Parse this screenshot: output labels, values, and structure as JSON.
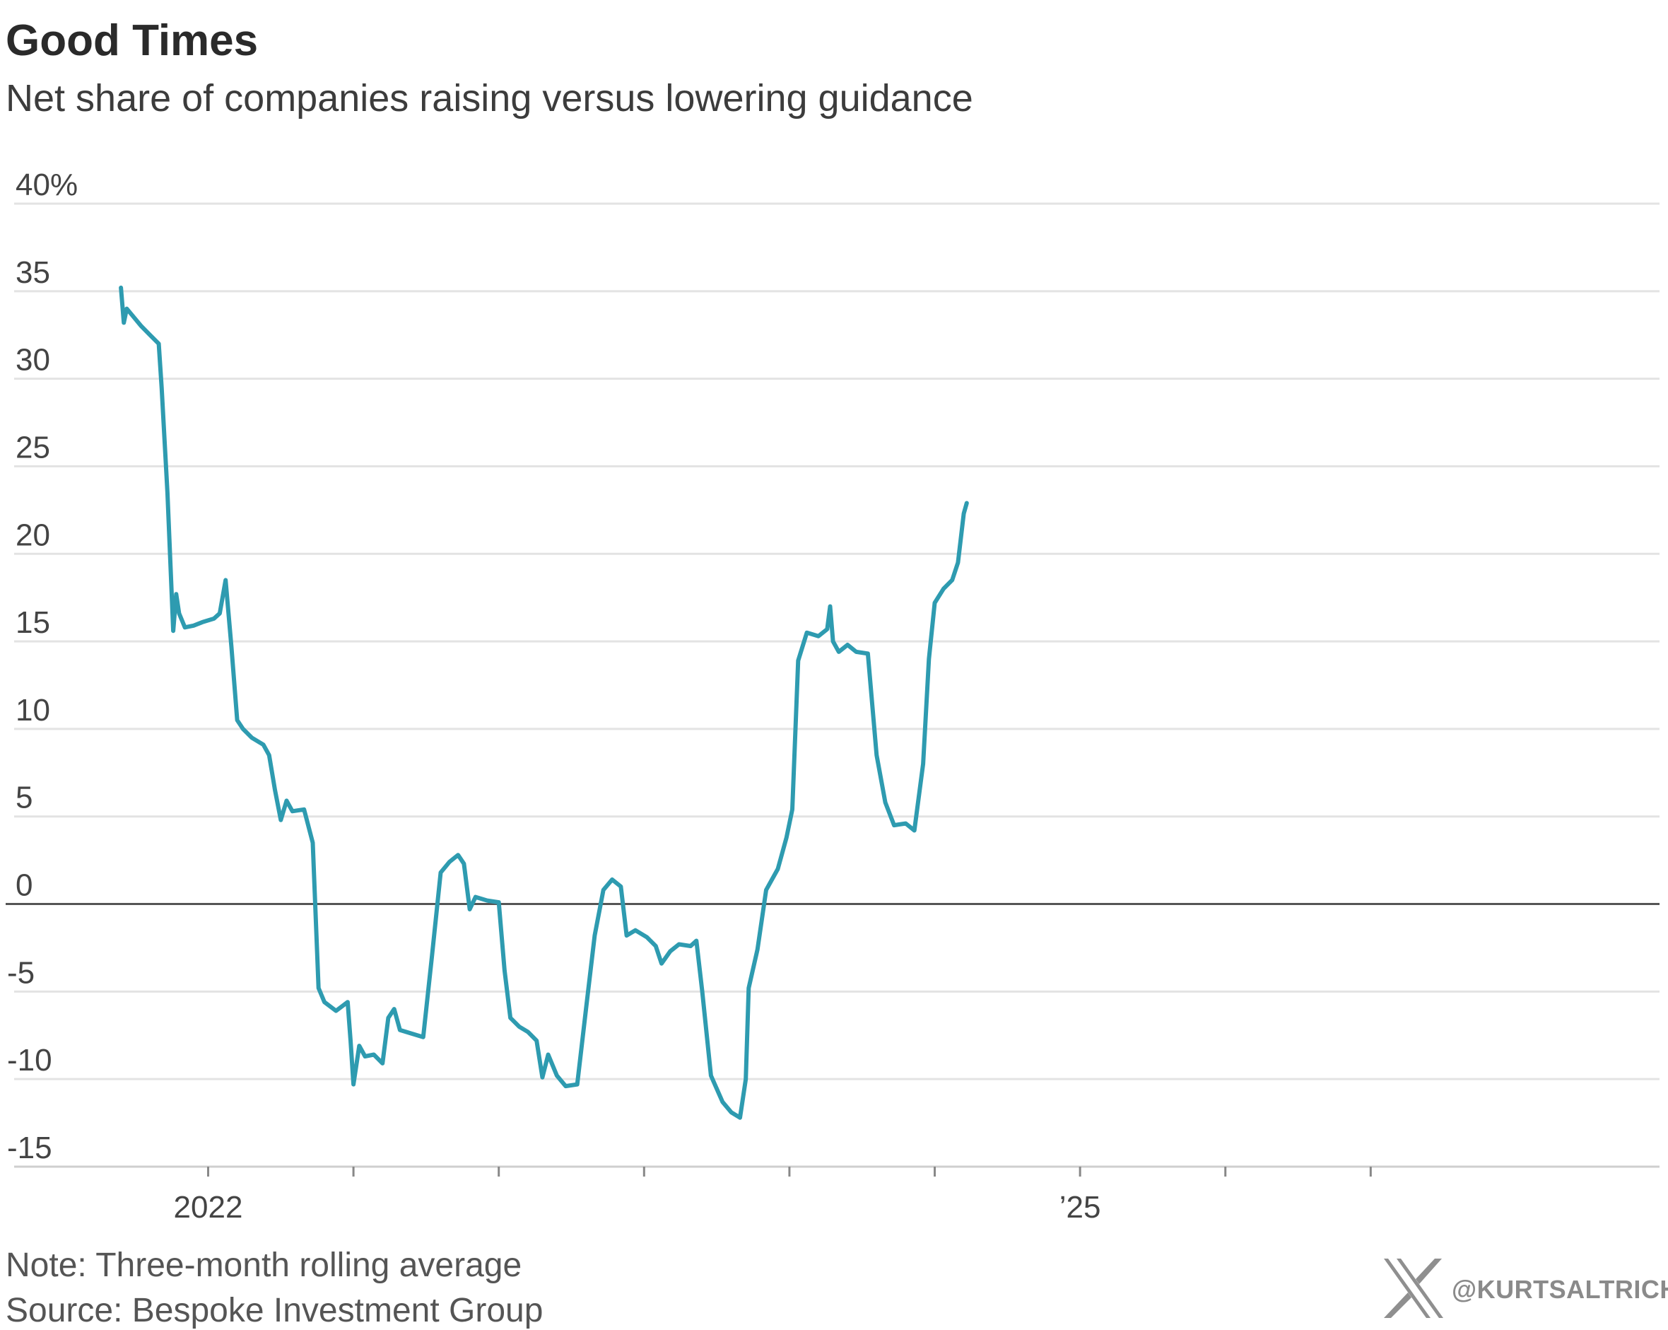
{
  "chart_data": {
    "type": "line",
    "title": "Good Times",
    "subtitle": "Net share of companies raising versus lowering guidance",
    "xlabel": "",
    "ylabel": "",
    "ylim": [
      -15,
      40
    ],
    "yticks": [
      40,
      35,
      30,
      25,
      20,
      15,
      10,
      5,
      0,
      -5,
      -10,
      -15
    ],
    "ytick_labels": [
      "40%",
      "35",
      "30",
      "25",
      "20",
      "15",
      "10",
      "5",
      "0",
      "-5",
      "-10",
      "-15"
    ],
    "xlim": [
      2021.6,
      2026.95
    ],
    "xticks": [
      2022,
      2022.5,
      2023,
      2023.5,
      2024,
      2024.5,
      2025,
      2025.5,
      2026
    ],
    "xtick_labels": [
      {
        "x": 2022,
        "label": "2022"
      },
      {
        "x": 2025,
        "label": "’25"
      }
    ],
    "grid": true,
    "zero_line": true,
    "line_color": "#2e9bb0",
    "series": [
      {
        "name": "",
        "points": [
          [
            2021.7,
            35.2
          ],
          [
            2021.71,
            33.2
          ],
          [
            2021.72,
            34.0
          ],
          [
            2021.74,
            33.6
          ],
          [
            2021.77,
            33.0
          ],
          [
            2021.8,
            32.5
          ],
          [
            2021.83,
            32.0
          ],
          [
            2021.84,
            29.5
          ],
          [
            2021.86,
            23.5
          ],
          [
            2021.88,
            15.6
          ],
          [
            2021.89,
            17.7
          ],
          [
            2021.9,
            16.6
          ],
          [
            2021.92,
            15.8
          ],
          [
            2021.95,
            15.9
          ],
          [
            2021.98,
            16.1
          ],
          [
            2022.02,
            16.3
          ],
          [
            2022.04,
            16.6
          ],
          [
            2022.06,
            18.5
          ],
          [
            2022.07,
            16.6
          ],
          [
            2022.08,
            14.7
          ],
          [
            2022.1,
            10.5
          ],
          [
            2022.12,
            10.0
          ],
          [
            2022.15,
            9.5
          ],
          [
            2022.19,
            9.1
          ],
          [
            2022.21,
            8.5
          ],
          [
            2022.23,
            6.5
          ],
          [
            2022.25,
            4.8
          ],
          [
            2022.27,
            5.9
          ],
          [
            2022.29,
            5.3
          ],
          [
            2022.33,
            5.4
          ],
          [
            2022.36,
            3.5
          ],
          [
            2022.38,
            -4.8
          ],
          [
            2022.4,
            -5.6
          ],
          [
            2022.44,
            -6.1
          ],
          [
            2022.48,
            -5.6
          ],
          [
            2022.49,
            -7.8
          ],
          [
            2022.5,
            -10.3
          ],
          [
            2022.52,
            -8.1
          ],
          [
            2022.54,
            -8.7
          ],
          [
            2022.57,
            -8.6
          ],
          [
            2022.6,
            -9.1
          ],
          [
            2022.62,
            -6.5
          ],
          [
            2022.64,
            -6.0
          ],
          [
            2022.66,
            -7.2
          ],
          [
            2022.7,
            -7.4
          ],
          [
            2022.74,
            -7.6
          ],
          [
            2022.77,
            -3.0
          ],
          [
            2022.8,
            1.8
          ],
          [
            2022.83,
            2.4
          ],
          [
            2022.86,
            2.8
          ],
          [
            2022.88,
            2.3
          ],
          [
            2022.9,
            -0.3
          ],
          [
            2022.92,
            0.4
          ],
          [
            2022.96,
            0.2
          ],
          [
            2023.0,
            0.1
          ],
          [
            2023.02,
            -3.8
          ],
          [
            2023.04,
            -6.5
          ],
          [
            2023.07,
            -7.0
          ],
          [
            2023.1,
            -7.3
          ],
          [
            2023.13,
            -7.8
          ],
          [
            2023.15,
            -9.9
          ],
          [
            2023.17,
            -8.6
          ],
          [
            2023.2,
            -9.8
          ],
          [
            2023.23,
            -10.4
          ],
          [
            2023.27,
            -10.3
          ],
          [
            2023.3,
            -6.0
          ],
          [
            2023.33,
            -1.8
          ],
          [
            2023.36,
            0.8
          ],
          [
            2023.39,
            1.4
          ],
          [
            2023.42,
            1.0
          ],
          [
            2023.44,
            -1.8
          ],
          [
            2023.47,
            -1.5
          ],
          [
            2023.51,
            -1.9
          ],
          [
            2023.54,
            -2.4
          ],
          [
            2023.56,
            -3.4
          ],
          [
            2023.59,
            -2.7
          ],
          [
            2023.62,
            -2.3
          ],
          [
            2023.66,
            -2.4
          ],
          [
            2023.68,
            -2.1
          ],
          [
            2023.7,
            -5.0
          ],
          [
            2023.73,
            -9.8
          ],
          [
            2023.77,
            -11.3
          ],
          [
            2023.8,
            -11.9
          ],
          [
            2023.83,
            -12.2
          ],
          [
            2023.85,
            -10.0
          ],
          [
            2023.86,
            -4.8
          ],
          [
            2023.89,
            -2.6
          ],
          [
            2023.92,
            0.8
          ],
          [
            2023.96,
            2.0
          ],
          [
            2023.99,
            3.8
          ],
          [
            2024.01,
            5.4
          ],
          [
            2024.03,
            13.9
          ],
          [
            2024.06,
            15.5
          ],
          [
            2024.1,
            15.3
          ],
          [
            2024.13,
            15.7
          ],
          [
            2024.14,
            17.0
          ],
          [
            2024.15,
            15.0
          ],
          [
            2024.17,
            14.4
          ],
          [
            2024.2,
            14.8
          ],
          [
            2024.23,
            14.4
          ],
          [
            2024.27,
            14.3
          ],
          [
            2024.3,
            8.5
          ],
          [
            2024.33,
            5.8
          ],
          [
            2024.36,
            4.5
          ],
          [
            2024.4,
            4.6
          ],
          [
            2024.43,
            4.2
          ],
          [
            2024.46,
            8.0
          ],
          [
            2024.48,
            14.0
          ],
          [
            2024.5,
            17.2
          ],
          [
            2024.53,
            18.0
          ],
          [
            2024.56,
            18.5
          ],
          [
            2024.58,
            19.5
          ],
          [
            2024.6,
            22.3
          ],
          [
            2024.61,
            22.9
          ]
        ]
      }
    ]
  },
  "notes": {
    "note": "Note: Three-month rolling average",
    "source": "Source: Bespoke Investment Group"
  },
  "watermark": {
    "logo_icon": "x-logo-icon",
    "handle": "@KURTSALTRICHTER"
  }
}
